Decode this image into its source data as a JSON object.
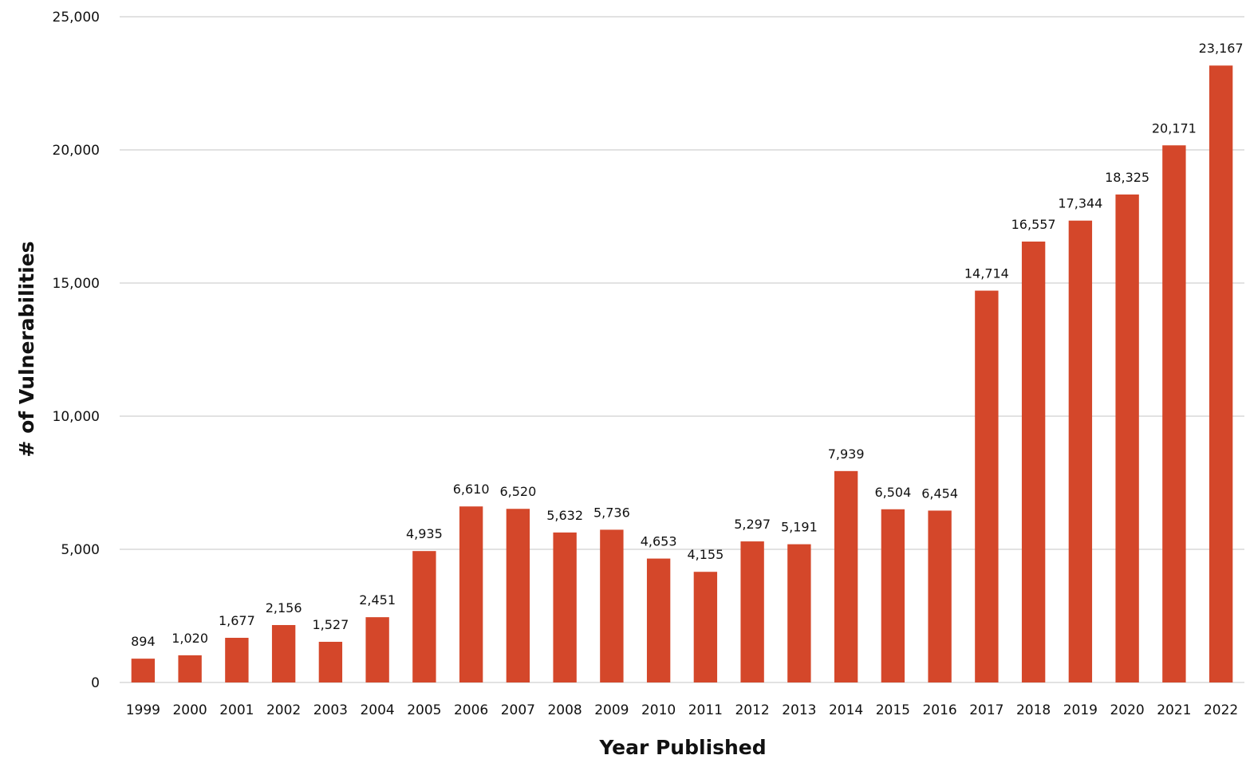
{
  "chart_data": {
    "type": "bar",
    "xlabel": "Year Published",
    "ylabel": "# of Vulnerabilities",
    "categories": [
      "1999",
      "2000",
      "2001",
      "2002",
      "2003",
      "2004",
      "2005",
      "2006",
      "2007",
      "2008",
      "2009",
      "2010",
      "2011",
      "2012",
      "2013",
      "2014",
      "2015",
      "2016",
      "2017",
      "2018",
      "2019",
      "2020",
      "2021",
      "2022"
    ],
    "values": [
      894,
      1020,
      1677,
      2156,
      1527,
      2451,
      4935,
      6610,
      6520,
      5632,
      5736,
      4653,
      4155,
      5297,
      5191,
      7939,
      6504,
      6454,
      14714,
      16557,
      17344,
      18325,
      20171,
      23167
    ],
    "value_labels": [
      "894",
      "1,020",
      "1,677",
      "2,156",
      "1,527",
      "2,451",
      "4,935",
      "6,610",
      "6,520",
      "5,632",
      "5,736",
      "4,653",
      "4,155",
      "5,297",
      "5,191",
      "7,939",
      "6,504",
      "6,454",
      "14,714",
      "16,557",
      "17,344",
      "18,325",
      "20,171",
      "23,167"
    ],
    "ylim": [
      0,
      25000
    ],
    "yticks": [
      0,
      5000,
      10000,
      15000,
      20000,
      25000
    ],
    "ytick_labels": [
      "0",
      "5,000",
      "10,000",
      "15,000",
      "20,000",
      "25,000"
    ],
    "grid": true,
    "legend": "none",
    "bar_color": "#d4472a",
    "grid_color": "#d9d9d9",
    "text_color": "#111111"
  }
}
